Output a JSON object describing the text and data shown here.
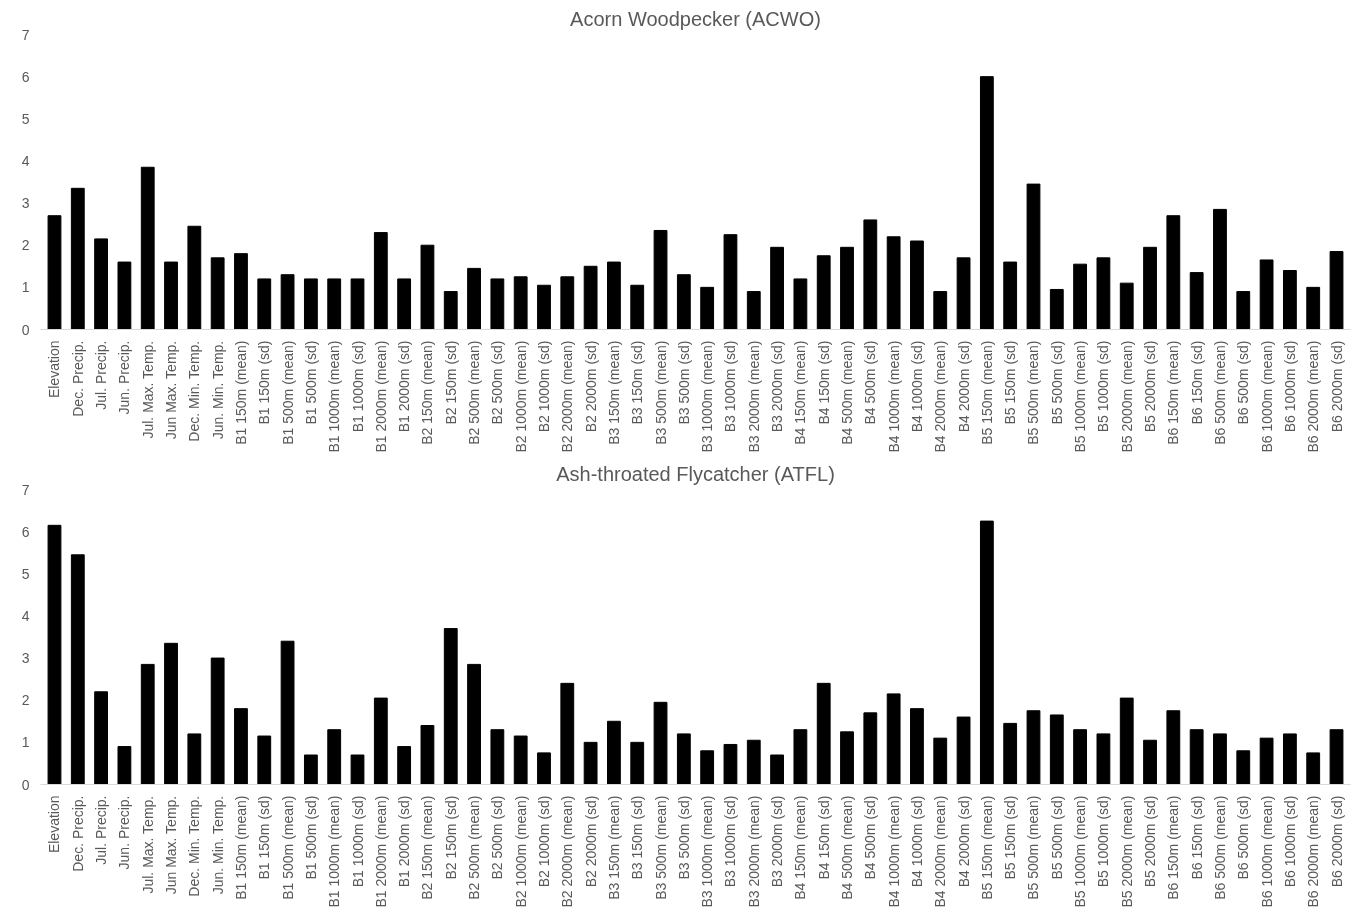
{
  "chart_data": [
    {
      "type": "bar",
      "title": "Acorn Woodpecker (ACWO)",
      "color": "#000000",
      "ylim": [
        0,
        7
      ],
      "yticks": [
        0,
        1,
        2,
        3,
        4,
        5,
        6,
        7
      ],
      "grid": false,
      "legend": false,
      "categories": [
        "Elevation",
        "Dec. Precip.",
        "Jul. Precip.",
        "Jun. Precip.",
        "Jul. Max. Temp.",
        "Jun Max. Temp.",
        "Dec. Min. Temp.",
        "Jun. Min. Temp.",
        "B1 150m (mean)",
        "B1 150m (sd)",
        "B1 500m (mean)",
        "B1 500m (sd)",
        "B1 1000m (mean)",
        "B1 1000m (sd)",
        "B1 2000m (mean)",
        "B1 2000m (sd)",
        "B2 150m (mean)",
        "B2 150m (sd)",
        "B2 500m (mean)",
        "B2 500m (sd)",
        "B2 1000m (mean)",
        "B2 1000m (sd)",
        "B2 2000m (mean)",
        "B2 2000m (sd)",
        "B3 150m (mean)",
        "B3 150m (sd)",
        "B3 500m (mean)",
        "B3 500m (sd)",
        "B3 1000m (mean)",
        "B3 1000m (sd)",
        "B3 2000m (mean)",
        "B3 2000m (sd)",
        "B4 150m (mean)",
        "B4 150m (sd)",
        "B4 500m (mean)",
        "B4 500m (sd)",
        "B4 1000m (mean)",
        "B4 1000m (sd)",
        "B4 2000m (mean)",
        "B4 2000m (sd)",
        "B5 150m (mean)",
        "B5 150m (sd)",
        "B5 500m (mean)",
        "B5 500m (sd)",
        "B5 1000m (mean)",
        "B5 1000m (sd)",
        "B5 2000m (mean)",
        "B5 2000m (sd)",
        "B6 150m (mean)",
        "B6 150m (sd)",
        "B6 500m (mean)",
        "B6 500m (sd)",
        "B6 1000m (mean)",
        "B6 1000m (sd)",
        "B6 2000m (mean)",
        "B6 2000m (sd)"
      ],
      "values": [
        2.7,
        3.35,
        2.15,
        1.6,
        3.85,
        1.6,
        2.45,
        1.7,
        1.8,
        1.2,
        1.3,
        1.2,
        1.2,
        1.2,
        2.3,
        1.2,
        2.0,
        0.9,
        1.45,
        1.2,
        1.25,
        1.05,
        1.25,
        1.5,
        1.6,
        1.05,
        2.35,
        1.3,
        1.0,
        2.25,
        0.9,
        1.95,
        1.2,
        1.75,
        1.95,
        2.6,
        2.2,
        2.1,
        0.9,
        1.7,
        6.0,
        1.6,
        3.45,
        0.95,
        1.55,
        1.7,
        1.1,
        1.95,
        2.7,
        1.35,
        2.85,
        0.9,
        1.65,
        1.4,
        1.0,
        1.85
      ]
    },
    {
      "type": "bar",
      "title": "Ash-throated Flycatcher (ATFL)",
      "color": "#000000",
      "ylim": [
        0,
        7
      ],
      "yticks": [
        0,
        1,
        2,
        3,
        4,
        5,
        6,
        7
      ],
      "grid": false,
      "legend": false,
      "categories": [
        "Elevation",
        "Dec. Precip.",
        "Jul. Precip.",
        "Jun. Precip.",
        "Jul. Max. Temp.",
        "Jun Max. Temp.",
        "Dec. Min. Temp.",
        "Jun. Min. Temp.",
        "B1 150m (mean)",
        "B1 150m (sd)",
        "B1 500m (mean)",
        "B1 500m (sd)",
        "B1 1000m (mean)",
        "B1 1000m (sd)",
        "B1 2000m (mean)",
        "B1 2000m (sd)",
        "B2 150m (mean)",
        "B2 150m (sd)",
        "B2 500m (mean)",
        "B2 500m (sd)",
        "B2 1000m (mean)",
        "B2 1000m (sd)",
        "B2 2000m (mean)",
        "B2 2000m (sd)",
        "B3 150m (mean)",
        "B3 150m (sd)",
        "B3 500m (mean)",
        "B3 500m (sd)",
        "B3 1000m (mean)",
        "B3 1000m (sd)",
        "B3 2000m (mean)",
        "B3 2000m (sd)",
        "B4 150m (mean)",
        "B4 150m (sd)",
        "B4 500m (mean)",
        "B4 500m (sd)",
        "B4 1000m (mean)",
        "B4 1000m (sd)",
        "B4 2000m (mean)",
        "B4 2000m (sd)",
        "B5 150m (mean)",
        "B5 150m (sd)",
        "B5 500m (mean)",
        "B5 500m (sd)",
        "B5 1000m (mean)",
        "B5 1000m (sd)",
        "B5 2000m (mean)",
        "B5 2000m (sd)",
        "B6 150m (mean)",
        "B6 150m (sd)",
        "B6 500m (mean)",
        "B6 500m (sd)",
        "B6 1000m (mean)",
        "B6 1000m (sd)",
        "B6 2000m (mean)",
        "B6 2000m (sd)"
      ],
      "values": [
        6.15,
        5.45,
        2.2,
        0.9,
        2.85,
        3.35,
        1.2,
        3.0,
        1.8,
        1.15,
        3.4,
        0.7,
        1.3,
        0.7,
        2.05,
        0.9,
        1.4,
        3.7,
        2.85,
        1.3,
        1.15,
        0.75,
        2.4,
        1.0,
        1.5,
        1.0,
        1.95,
        1.2,
        0.8,
        0.95,
        1.05,
        0.7,
        1.3,
        2.4,
        1.25,
        1.7,
        2.15,
        1.8,
        1.1,
        1.6,
        6.25,
        1.45,
        1.75,
        1.65,
        1.3,
        1.2,
        2.05,
        1.05,
        1.75,
        1.3,
        1.2,
        0.8,
        1.1,
        1.2,
        0.75,
        1.3
      ]
    }
  ]
}
